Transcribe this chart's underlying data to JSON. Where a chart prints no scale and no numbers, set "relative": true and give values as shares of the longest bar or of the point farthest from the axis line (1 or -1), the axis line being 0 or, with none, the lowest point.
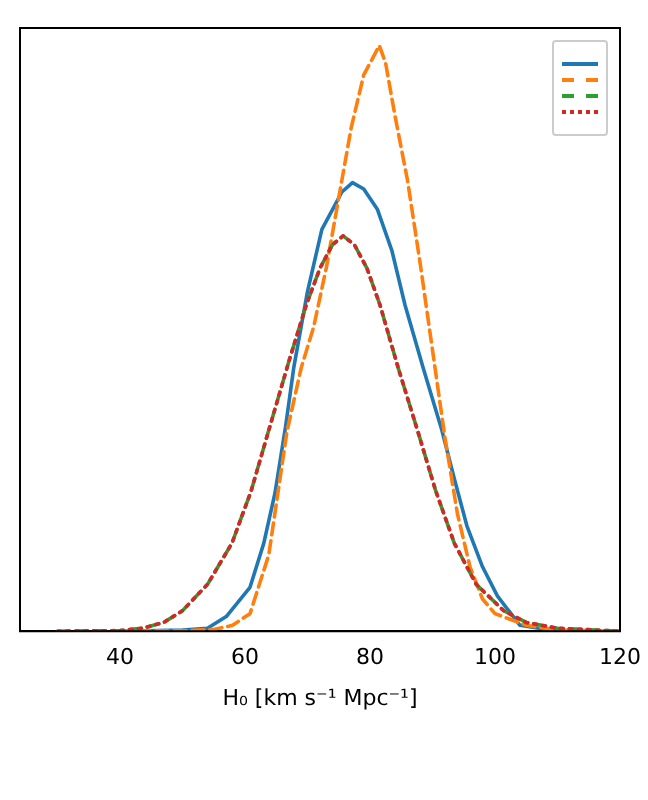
{
  "chart_data": {
    "type": "line",
    "relative": true,
    "xlabel": "H₀ [km s⁻¹ Mpc⁻¹]",
    "xlim": [
      24,
      120
    ],
    "xticks": [
      40,
      60,
      80,
      100,
      120
    ],
    "grid": false,
    "marker": "none",
    "series": [
      {
        "color": "#1f77b4",
        "line_style": "solid",
        "x": [
          40,
          50,
          54,
          57,
          60.8,
          63,
          64.8,
          66.5,
          67.8,
          70,
          72.3,
          74,
          75.5,
          77.2,
          79,
          81.2,
          83.5,
          85.6,
          88.5,
          91.5,
          93.5,
          95.5,
          98,
          100.4,
          104,
          110
        ],
        "values": [
          0,
          0.002,
          0.005,
          0.025,
          0.075,
          0.15,
          0.236,
          0.35,
          0.45,
          0.58,
          0.686,
          0.72,
          0.75,
          0.766,
          0.755,
          0.72,
          0.65,
          0.557,
          0.45,
          0.343,
          0.26,
          0.18,
          0.11,
          0.06,
          0.01,
          0
        ]
      },
      {
        "color": "#ff7f0e",
        "line_style": "dashed",
        "x": [
          40,
          50,
          55,
          58,
          60.8,
          63.8,
          66.7,
          69,
          71,
          73,
          75,
          77,
          79,
          81.5,
          82.5,
          84,
          86,
          88,
          90,
          92,
          94,
          96,
          98,
          100,
          105,
          110,
          120
        ],
        "values": [
          0,
          0.001,
          0.003,
          0.01,
          0.03,
          0.13,
          0.34,
          0.45,
          0.52,
          0.62,
          0.74,
          0.86,
          0.95,
          1,
          0.97,
          0.88,
          0.77,
          0.63,
          0.48,
          0.33,
          0.2,
          0.11,
          0.055,
          0.03,
          0.01,
          0.002,
          0
        ]
      },
      {
        "color": "#2ca02c",
        "line_style": "dashed",
        "x": [
          30,
          40,
          43.6,
          47,
          50,
          54,
          57.9,
          61,
          63.8,
          67,
          69.8,
          72,
          74,
          75.7,
          77.5,
          79.5,
          81.6,
          84.5,
          87.6,
          90.5,
          93.5,
          97,
          101.4,
          105,
          110,
          120
        ],
        "values": [
          0,
          0.001,
          0.005,
          0.015,
          0.035,
          0.08,
          0.15,
          0.24,
          0.343,
          0.46,
          0.557,
          0.62,
          0.66,
          0.675,
          0.66,
          0.62,
          0.557,
          0.45,
          0.343,
          0.24,
          0.15,
          0.08,
          0.035,
          0.015,
          0.005,
          0
        ]
      },
      {
        "color": "#d62728",
        "line_style": "dotted",
        "x": [
          30,
          40,
          43.6,
          47,
          50,
          54,
          57.9,
          61,
          63.8,
          67,
          69.8,
          72,
          74,
          75.7,
          77.5,
          79.5,
          81.6,
          84.5,
          87.6,
          90.5,
          93.5,
          97,
          101.4,
          105,
          110,
          120
        ],
        "values": [
          0,
          0.001,
          0.005,
          0.015,
          0.035,
          0.08,
          0.15,
          0.24,
          0.343,
          0.46,
          0.557,
          0.62,
          0.66,
          0.675,
          0.66,
          0.62,
          0.557,
          0.45,
          0.343,
          0.24,
          0.15,
          0.08,
          0.035,
          0.015,
          0.005,
          0
        ]
      }
    ]
  }
}
